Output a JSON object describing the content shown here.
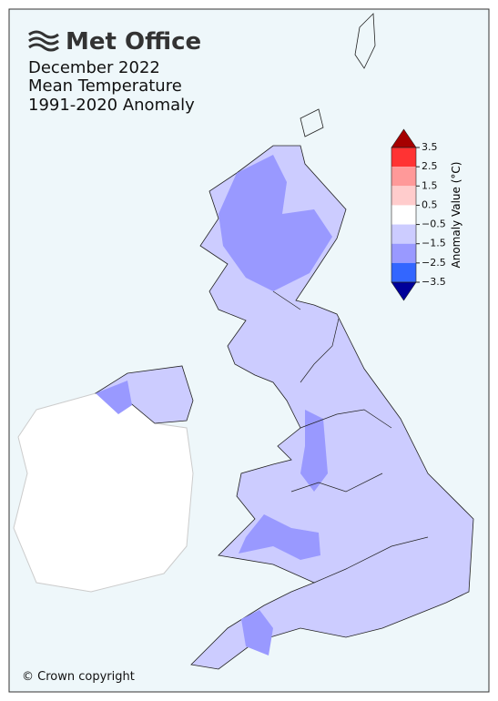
{
  "header": {
    "logo": "Met Office",
    "title_lines": [
      "December 2022",
      "Mean Temperature",
      "1991-2020 Anomaly"
    ]
  },
  "legend": {
    "label": "Anomaly Value (°C)",
    "ticks": [
      3.5,
      2.5,
      1.5,
      0.5,
      {
        "value": -0.5,
        "label": "−0.5"
      },
      {
        "value": -1.5,
        "label": "−1.5"
      },
      {
        "value": -2.5,
        "label": "−2.5"
      },
      {
        "value": -3.5,
        "label": "−3.5"
      }
    ],
    "colors": [
      "#ff3333",
      "#ff9999",
      "#ffcccc",
      "#ffffff",
      "#ccccff",
      "#9999ff",
      "#3366ff"
    ],
    "extend_colors": [
      "#a50000",
      "#000099"
    ]
  },
  "footer": {
    "copyright": "© Crown copyright"
  }
}
